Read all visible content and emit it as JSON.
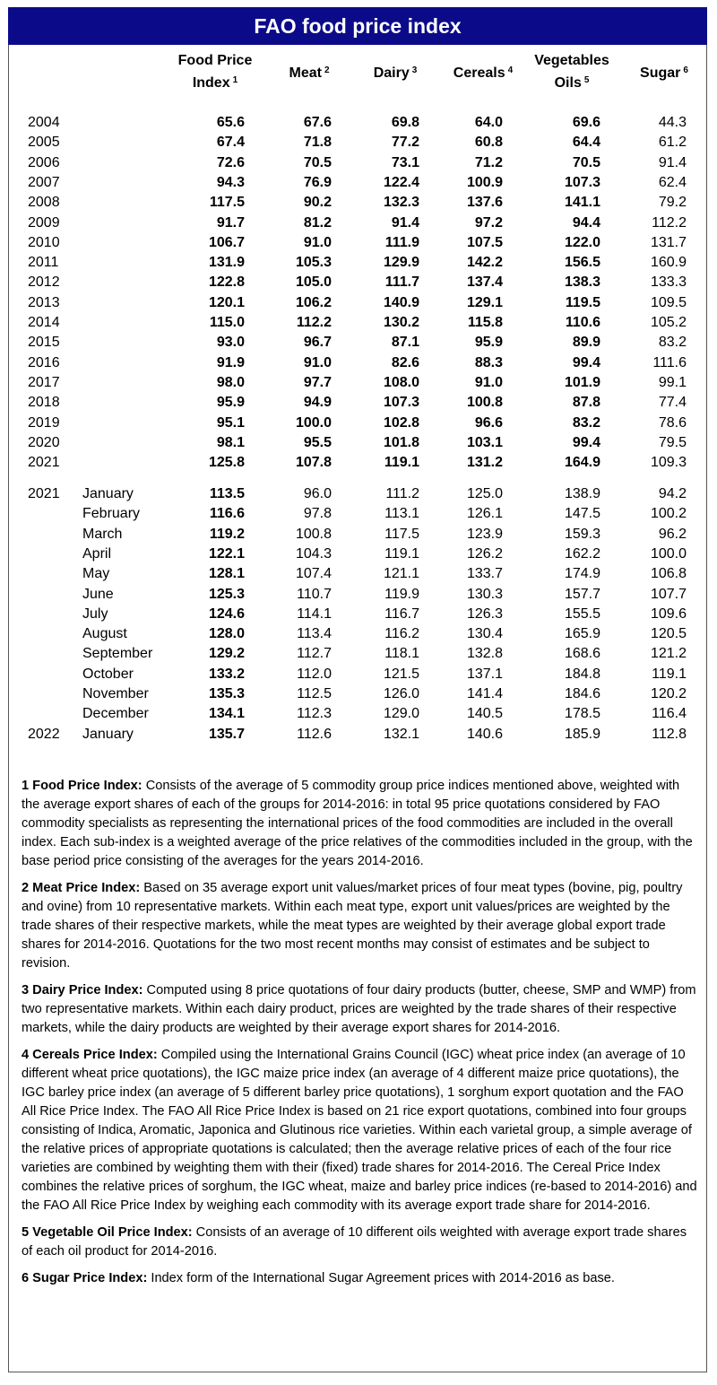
{
  "header": {
    "title": "FAO food price index"
  },
  "table": {
    "columns": [
      {
        "lines": [
          "Food Price",
          "Index"
        ],
        "note": "1"
      },
      {
        "lines": [
          "Meat"
        ],
        "note": "2"
      },
      {
        "lines": [
          "Dairy"
        ],
        "note": "3"
      },
      {
        "lines": [
          "Cereals"
        ],
        "note": "4"
      },
      {
        "lines": [
          "Vegetables",
          "Oils"
        ],
        "note": "5"
      },
      {
        "lines": [
          "Sugar"
        ],
        "note": "6"
      }
    ],
    "annual": [
      {
        "year": "2004",
        "values": [
          "65.6",
          "67.6",
          "69.8",
          "64.0",
          "69.6",
          "44.3"
        ]
      },
      {
        "year": "2005",
        "values": [
          "67.4",
          "71.8",
          "77.2",
          "60.8",
          "64.4",
          "61.2"
        ]
      },
      {
        "year": "2006",
        "values": [
          "72.6",
          "70.5",
          "73.1",
          "71.2",
          "70.5",
          "91.4"
        ]
      },
      {
        "year": "2007",
        "values": [
          "94.3",
          "76.9",
          "122.4",
          "100.9",
          "107.3",
          "62.4"
        ]
      },
      {
        "year": "2008",
        "values": [
          "117.5",
          "90.2",
          "132.3",
          "137.6",
          "141.1",
          "79.2"
        ]
      },
      {
        "year": "2009",
        "values": [
          "91.7",
          "81.2",
          "91.4",
          "97.2",
          "94.4",
          "112.2"
        ]
      },
      {
        "year": "2010",
        "values": [
          "106.7",
          "91.0",
          "111.9",
          "107.5",
          "122.0",
          "131.7"
        ]
      },
      {
        "year": "2011",
        "values": [
          "131.9",
          "105.3",
          "129.9",
          "142.2",
          "156.5",
          "160.9"
        ]
      },
      {
        "year": "2012",
        "values": [
          "122.8",
          "105.0",
          "111.7",
          "137.4",
          "138.3",
          "133.3"
        ]
      },
      {
        "year": "2013",
        "values": [
          "120.1",
          "106.2",
          "140.9",
          "129.1",
          "119.5",
          "109.5"
        ]
      },
      {
        "year": "2014",
        "values": [
          "115.0",
          "112.2",
          "130.2",
          "115.8",
          "110.6",
          "105.2"
        ]
      },
      {
        "year": "2015",
        "values": [
          "93.0",
          "96.7",
          "87.1",
          "95.9",
          "89.9",
          "83.2"
        ]
      },
      {
        "year": "2016",
        "values": [
          "91.9",
          "91.0",
          "82.6",
          "88.3",
          "99.4",
          "111.6"
        ]
      },
      {
        "year": "2017",
        "values": [
          "98.0",
          "97.7",
          "108.0",
          "91.0",
          "101.9",
          "99.1"
        ]
      },
      {
        "year": "2018",
        "values": [
          "95.9",
          "94.9",
          "107.3",
          "100.8",
          "87.8",
          "77.4"
        ]
      },
      {
        "year": "2019",
        "values": [
          "95.1",
          "100.0",
          "102.8",
          "96.6",
          "83.2",
          "78.6"
        ]
      },
      {
        "year": "2020",
        "values": [
          "98.1",
          "95.5",
          "101.8",
          "103.1",
          "99.4",
          "79.5"
        ]
      },
      {
        "year": "2021",
        "values": [
          "125.8",
          "107.8",
          "119.1",
          "131.2",
          "164.9",
          "109.3"
        ]
      }
    ],
    "monthly": [
      {
        "year": "2021",
        "month": "January",
        "values": [
          "113.5",
          "96.0",
          "111.2",
          "125.0",
          "138.9",
          "94.2"
        ]
      },
      {
        "month": "February",
        "values": [
          "116.6",
          "97.8",
          "113.1",
          "126.1",
          "147.5",
          "100.2"
        ]
      },
      {
        "month": "March",
        "values": [
          "119.2",
          "100.8",
          "117.5",
          "123.9",
          "159.3",
          "96.2"
        ]
      },
      {
        "month": "April",
        "values": [
          "122.1",
          "104.3",
          "119.1",
          "126.2",
          "162.2",
          "100.0"
        ]
      },
      {
        "month": "May",
        "values": [
          "128.1",
          "107.4",
          "121.1",
          "133.7",
          "174.9",
          "106.8"
        ]
      },
      {
        "month": "June",
        "values": [
          "125.3",
          "110.7",
          "119.9",
          "130.3",
          "157.7",
          "107.7"
        ]
      },
      {
        "month": "July",
        "values": [
          "124.6",
          "114.1",
          "116.7",
          "126.3",
          "155.5",
          "109.6"
        ]
      },
      {
        "month": "August",
        "values": [
          "128.0",
          "113.4",
          "116.2",
          "130.4",
          "165.9",
          "120.5"
        ]
      },
      {
        "month": "September",
        "values": [
          "129.2",
          "112.7",
          "118.1",
          "132.8",
          "168.6",
          "121.2"
        ]
      },
      {
        "month": "October",
        "values": [
          "133.2",
          "112.0",
          "121.5",
          "137.1",
          "184.8",
          "119.1"
        ]
      },
      {
        "month": "November",
        "values": [
          "135.3",
          "112.5",
          "126.0",
          "141.4",
          "184.6",
          "120.2"
        ]
      },
      {
        "month": "December",
        "values": [
          "134.1",
          "112.3",
          "129.0",
          "140.5",
          "178.5",
          "116.4"
        ]
      },
      {
        "year": "2022",
        "month": "January",
        "values": [
          "135.7",
          "112.6",
          "132.1",
          "140.6",
          "185.9",
          "112.8"
        ]
      }
    ]
  },
  "notes": [
    {
      "label": "1 Food Price Index:",
      "text": "Consists of the average of 5 commodity group price indices mentioned above, weighted with the average export shares of each of the groups for 2014-2016: in total 95 price quotations considered by FAO commodity specialists as representing the international prices of the food commodities are included in the overall index. Each sub-index is a weighted average of the price relatives of the commodities included in the group, with the base period price consisting of the averages for the years 2014-2016."
    },
    {
      "label": "2 Meat Price Index:",
      "text": "Based on 35 average export unit values/market prices of four meat types (bovine, pig, poultry and ovine) from 10 representative markets. Within each meat type, export unit values/prices are weighted by the trade shares of their respective markets, while the meat types are weighted by their average global export trade shares for 2014-2016. Quotations for the two most recent months may consist of estimates and be subject to revision."
    },
    {
      "label": "3 Dairy Price Index:",
      "text": "Computed using 8 price quotations of four dairy products (butter, cheese, SMP and WMP) from two representative markets. Within each dairy product, prices are weighted by the trade shares of their respective markets, while the dairy products are weighted by their average export shares for 2014-2016."
    },
    {
      "label": "4 Cereals Price Index:",
      "text": "Compiled using the International Grains Council (IGC) wheat price index (an average of 10 different wheat price quotations), the IGC maize price index (an average of 4 different maize price quotations), the IGC barley price index (an average of 5 different barley price quotations), 1 sorghum export quotation and the FAO All Rice Price Index. The FAO All Rice Price Index is based on 21 rice export quotations, combined into four groups consisting of Indica, Aromatic, Japonica and Glutinous rice varieties. Within each varietal group, a simple average of the relative prices of appropriate quotations is calculated; then the average relative prices of each of the four rice varieties are combined by weighting them with their (fixed) trade shares for 2014-2016. The Cereal Price Index combines the relative prices of sorghum, the IGC wheat, maize and barley price indices (re-based to 2014-2016) and the FAO All Rice Price Index by weighing each commodity with its average export trade share for 2014-2016."
    },
    {
      "label": "5 Vegetable Oil Price Index:",
      "text": "Consists of an average of 10 different oils weighted with average export trade shares of each oil product for 2014-2016."
    },
    {
      "label": "6 Sugar Price Index:",
      "text": "Index form of the International Sugar Agreement prices with 2014-2016 as base."
    }
  ]
}
